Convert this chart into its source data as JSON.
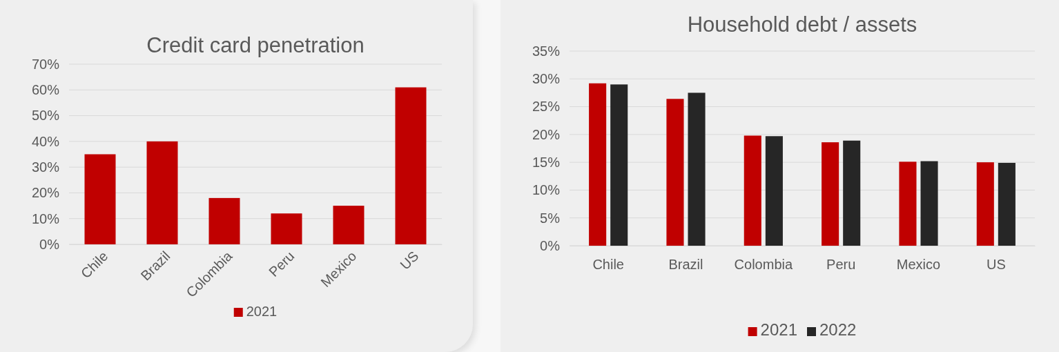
{
  "chart_data": [
    {
      "type": "bar",
      "title": "Credit card penetration",
      "categories": [
        "Chile",
        "Brazil",
        "Colombia",
        "Peru",
        "Mexico",
        "US"
      ],
      "series": [
        {
          "name": "2021",
          "color": "#c00000",
          "values": [
            35,
            40,
            18,
            12,
            15,
            61
          ]
        }
      ],
      "ylim": [
        0,
        70
      ],
      "yticks": [
        {
          "value": 0,
          "label": "0%"
        },
        {
          "value": 10,
          "label": "10%"
        },
        {
          "value": 20,
          "label": "20%"
        },
        {
          "value": 30,
          "label": "30%"
        },
        {
          "value": 40,
          "label": "40%"
        },
        {
          "value": 50,
          "label": "50%"
        },
        {
          "value": 60,
          "label": "60%"
        },
        {
          "value": 70,
          "label": "70%"
        }
      ],
      "grid": "y",
      "legend": "bottom"
    },
    {
      "type": "bar",
      "title": "Household debt / assets",
      "categories": [
        "Chile",
        "Brazil",
        "Colombia",
        "Peru",
        "Mexico",
        "US"
      ],
      "series": [
        {
          "name": "2021",
          "color": "#c00000",
          "values": [
            29.2,
            26.4,
            19.8,
            18.6,
            15.1,
            15.0
          ]
        },
        {
          "name": "2022",
          "color": "#262626",
          "values": [
            29.0,
            27.5,
            19.7,
            18.9,
            15.2,
            14.9
          ]
        }
      ],
      "ylim": [
        0,
        35
      ],
      "yticks": [
        {
          "value": 0,
          "label": "0%"
        },
        {
          "value": 5,
          "label": "5%"
        },
        {
          "value": 10,
          "label": "10%"
        },
        {
          "value": 15,
          "label": "15%"
        },
        {
          "value": 20,
          "label": "20%"
        },
        {
          "value": 25,
          "label": "25%"
        },
        {
          "value": 30,
          "label": "30%"
        },
        {
          "value": 35,
          "label": "35%"
        }
      ],
      "grid": "y",
      "legend": "bottom"
    }
  ]
}
